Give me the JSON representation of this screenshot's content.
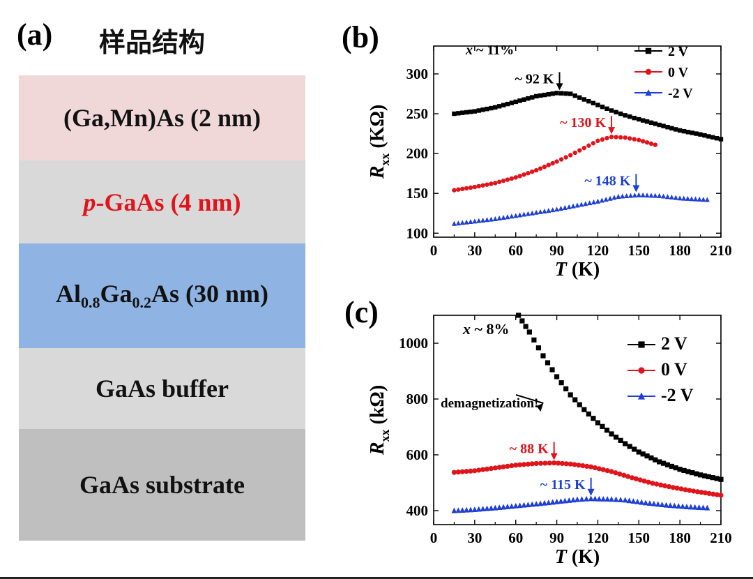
{
  "panel_a": {
    "letter": "(a)",
    "title": "样品结构",
    "layers": [
      {
        "parts": [
          {
            "t": "(Ga,Mn)As (2 nm)"
          }
        ],
        "bg": "#f0d8d9",
        "color": "#111111"
      },
      {
        "parts": [
          {
            "t": "p",
            "style": "italic"
          },
          {
            "t": "-GaAs (4 nm)"
          }
        ],
        "bg": "#d9d9d9",
        "color": "#e0151b"
      },
      {
        "parts": [
          {
            "t": "Al"
          },
          {
            "t": "0.8",
            "sub": true
          },
          {
            "t": "Ga"
          },
          {
            "t": "0.2",
            "sub": true
          },
          {
            "t": "As (30 nm)"
          }
        ],
        "bg": "#8fb4e3",
        "color": "#111111"
      },
      {
        "parts": [
          {
            "t": "GaAs buffer"
          }
        ],
        "bg": "#d9d9d9",
        "color": "#111111"
      },
      {
        "parts": [
          {
            "t": "GaAs substrate"
          }
        ],
        "bg": "#bfbfbf",
        "color": "#111111"
      }
    ]
  },
  "chart_data": [
    {
      "type": "scatter",
      "panel": "(b)",
      "xlabel_italic": "T",
      "xlabel_rest": " (K)",
      "ylabel_main": "R",
      "ylabel_sub": "xx",
      "ylabel_unit": " (KΩ)",
      "xlim": [
        0,
        210
      ],
      "ylim": [
        95,
        335
      ],
      "xticks": [
        0,
        30,
        60,
        90,
        120,
        150,
        180,
        210
      ],
      "yticks": [
        100,
        150,
        200,
        250,
        300
      ],
      "sample_label": "x ~ 11%",
      "legend_position": "top-right",
      "series": [
        {
          "name": "2 V",
          "color": "#000000",
          "marker": "square",
          "points": [
            [
              15,
              250
            ],
            [
              30,
              253
            ],
            [
              45,
              258
            ],
            [
              60,
              265
            ],
            [
              75,
              272
            ],
            [
              90,
              276
            ],
            [
              100,
              275
            ],
            [
              110,
              268
            ],
            [
              120,
              261
            ],
            [
              130,
              254
            ],
            [
              140,
              248
            ],
            [
              150,
              243
            ],
            [
              165,
              236
            ],
            [
              180,
              229
            ],
            [
              195,
              224
            ],
            [
              210,
              218
            ]
          ]
        },
        {
          "name": "0 V",
          "color": "#e0151b",
          "marker": "circle",
          "points": [
            [
              15,
              154
            ],
            [
              30,
              158
            ],
            [
              45,
              163
            ],
            [
              60,
              170
            ],
            [
              75,
              179
            ],
            [
              90,
              190
            ],
            [
              100,
              198
            ],
            [
              110,
              207
            ],
            [
              120,
              216
            ],
            [
              130,
              221
            ],
            [
              140,
              220
            ],
            [
              150,
              217
            ],
            [
              162,
              211
            ]
          ]
        },
        {
          "name": "-2 V",
          "color": "#1f3fd6",
          "marker": "triangle",
          "points": [
            [
              15,
              112
            ],
            [
              30,
              115
            ],
            [
              45,
              118
            ],
            [
              60,
              122
            ],
            [
              75,
              126
            ],
            [
              90,
              130
            ],
            [
              105,
              135
            ],
            [
              120,
              140
            ],
            [
              135,
              146
            ],
            [
              150,
              148
            ],
            [
              165,
              147
            ],
            [
              180,
              144
            ],
            [
              200,
              142
            ]
          ]
        }
      ],
      "annotations": [
        {
          "text": "~ 92 K",
          "x": 92,
          "y": 276,
          "color": "#000000"
        },
        {
          "text": "~ 130 K",
          "x": 130,
          "y": 221,
          "color": "#e0151b"
        },
        {
          "text": "~ 148 K",
          "x": 148,
          "y": 148,
          "color": "#1f3fd6"
        }
      ]
    },
    {
      "type": "scatter",
      "panel": "(c)",
      "xlabel_italic": "T",
      "xlabel_rest": " (K)",
      "ylabel_main": "R",
      "ylabel_sub": "xx",
      "ylabel_unit": " (kΩ)",
      "xlim": [
        0,
        210
      ],
      "ylim": [
        350,
        1100
      ],
      "xticks": [
        0,
        30,
        60,
        90,
        120,
        150,
        180,
        210
      ],
      "yticks": [
        400,
        600,
        800,
        1000
      ],
      "sample_label": "x ~ 8%",
      "legend_position": "right",
      "series": [
        {
          "name": "2 V",
          "color": "#000000",
          "marker": "square",
          "points": [
            [
              62,
              1100
            ],
            [
              70,
              1040
            ],
            [
              80,
              955
            ],
            [
              90,
              880
            ],
            [
              100,
              815
            ],
            [
              110,
              762
            ],
            [
              120,
              715
            ],
            [
              130,
              675
            ],
            [
              140,
              640
            ],
            [
              150,
              610
            ],
            [
              165,
              575
            ],
            [
              180,
              548
            ],
            [
              195,
              528
            ],
            [
              210,
              512
            ]
          ]
        },
        {
          "name": "0 V",
          "color": "#e0151b",
          "marker": "circle",
          "points": [
            [
              15,
              537
            ],
            [
              30,
              543
            ],
            [
              45,
              553
            ],
            [
              60,
              563
            ],
            [
              75,
              569
            ],
            [
              88,
              571
            ],
            [
              100,
              567
            ],
            [
              115,
              557
            ],
            [
              130,
              540
            ],
            [
              145,
              518
            ],
            [
              160,
              498
            ],
            [
              175,
              483
            ],
            [
              190,
              470
            ],
            [
              210,
              455
            ]
          ]
        },
        {
          "name": "-2 V",
          "color": "#1f3fd6",
          "marker": "triangle",
          "points": [
            [
              15,
              400
            ],
            [
              30,
              404
            ],
            [
              45,
              410
            ],
            [
              60,
              417
            ],
            [
              75,
              424
            ],
            [
              90,
              432
            ],
            [
              105,
              440
            ],
            [
              115,
              443
            ],
            [
              130,
              441
            ],
            [
              140,
              438
            ],
            [
              155,
              428
            ],
            [
              170,
              420
            ],
            [
              185,
              414
            ],
            [
              200,
              410
            ]
          ]
        }
      ],
      "annotations": [
        {
          "text": "~ 88 K",
          "x": 88,
          "y": 571,
          "color": "#e0151b"
        },
        {
          "text": "~ 115 K",
          "x": 115,
          "y": 443,
          "color": "#1f3fd6"
        },
        {
          "text": "demagnetization!",
          "x": 70,
          "y": 805,
          "color": "#000000"
        }
      ]
    }
  ]
}
